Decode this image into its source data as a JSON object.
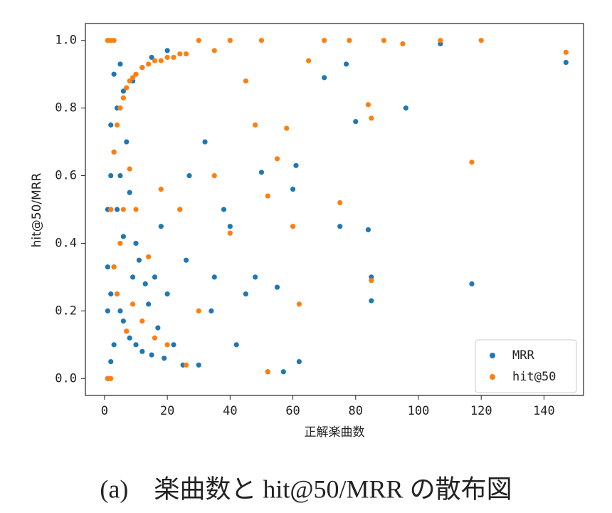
{
  "chart_data": {
    "type": "scatter",
    "xlabel": "正解楽曲数",
    "ylabel": "hit@50/MRR",
    "caption": "(a)　楽曲数と hit@50/MRR の散布図",
    "xlim": [
      -6.1,
      152.6
    ],
    "ylim": [
      -0.05,
      1.05
    ],
    "xticks": [
      0,
      20,
      40,
      60,
      80,
      100,
      120,
      140
    ],
    "yticks": [
      {
        "value": 0,
        "label": "0.0"
      },
      {
        "value": 0.2,
        "label": "0.2"
      },
      {
        "value": 0.4,
        "label": "0.4"
      },
      {
        "value": 0.6,
        "label": "0.6"
      },
      {
        "value": 0.8,
        "label": "0.8"
      },
      {
        "value": 1,
        "label": "1.0"
      }
    ],
    "legend": "lower right",
    "series": [
      {
        "name": "MRR",
        "color": "#1f77b4",
        "x": [
          1,
          1,
          1,
          1,
          1,
          2,
          2,
          2,
          2,
          2,
          3,
          3,
          3,
          3,
          4,
          4,
          4,
          5,
          5,
          5,
          6,
          6,
          6,
          7,
          7,
          8,
          8,
          9,
          9,
          10,
          10,
          11,
          12,
          12,
          13,
          14,
          15,
          15,
          16,
          17,
          18,
          19,
          20,
          20,
          22,
          24,
          25,
          26,
          27,
          30,
          32,
          34,
          35,
          38,
          40,
          42,
          45,
          48,
          50,
          52,
          55,
          57,
          60,
          61,
          62,
          70,
          75,
          77,
          80,
          84,
          85,
          85,
          96,
          107,
          117,
          147
        ],
        "values": [
          0,
          0.5,
          1,
          0.33,
          0.2,
          0.5,
          0.25,
          0.75,
          0.05,
          0.6,
          0.33,
          0.67,
          0.1,
          0.9,
          0.25,
          0.5,
          0.8,
          0.2,
          0.6,
          0.93,
          0.17,
          0.42,
          0.85,
          0.14,
          0.7,
          0.12,
          0.55,
          0.3,
          0.88,
          0.1,
          0.4,
          0.35,
          0.08,
          0.92,
          0.28,
          0.22,
          0.07,
          0.95,
          0.3,
          0.15,
          0.45,
          0.06,
          0.97,
          0.25,
          0.1,
          0.5,
          0.04,
          0.35,
          0.6,
          0.04,
          0.7,
          0.2,
          0.3,
          0.5,
          0.45,
          0.1,
          0.25,
          0.3,
          0.61,
          0.02,
          0.27,
          0.02,
          0.56,
          0.63,
          0.05,
          0.89,
          0.45,
          0.93,
          0.76,
          0.44,
          0.23,
          0.3,
          0.8,
          0.99,
          0.28,
          0.935
        ]
      },
      {
        "name": "hit@50",
        "color": "#ff7f0e",
        "x": [
          1,
          1,
          2,
          2,
          2,
          3,
          3,
          3,
          4,
          4,
          5,
          5,
          6,
          6,
          7,
          7,
          8,
          8,
          9,
          9,
          10,
          10,
          12,
          12,
          14,
          14,
          16,
          16,
          18,
          18,
          20,
          20,
          22,
          24,
          24,
          26,
          26,
          30,
          30,
          35,
          35,
          40,
          40,
          45,
          48,
          50,
          52,
          52,
          55,
          58,
          60,
          62,
          65,
          70,
          75,
          78,
          84,
          85,
          85,
          89,
          95,
          107,
          117,
          120,
          147
        ],
        "values": [
          0,
          1,
          0,
          1,
          0.5,
          1,
          0.67,
          0.33,
          0.75,
          0.25,
          0.8,
          0.4,
          0.83,
          0.5,
          0.86,
          0.14,
          0.88,
          0.62,
          0.89,
          0.22,
          0.9,
          0.5,
          0.92,
          0.17,
          0.93,
          0.36,
          0.94,
          0.12,
          0.94,
          0.56,
          0.95,
          0.1,
          0.95,
          0.96,
          0.5,
          0.96,
          0.04,
          1,
          0.2,
          0.97,
          0.6,
          1,
          0.43,
          0.88,
          0.75,
          1,
          0.54,
          0.02,
          0.65,
          0.74,
          0.45,
          0.22,
          0.94,
          1,
          0.52,
          1,
          0.81,
          0.77,
          0.29,
          1,
          0.99,
          1,
          0.64,
          1,
          0.965
        ]
      }
    ]
  }
}
